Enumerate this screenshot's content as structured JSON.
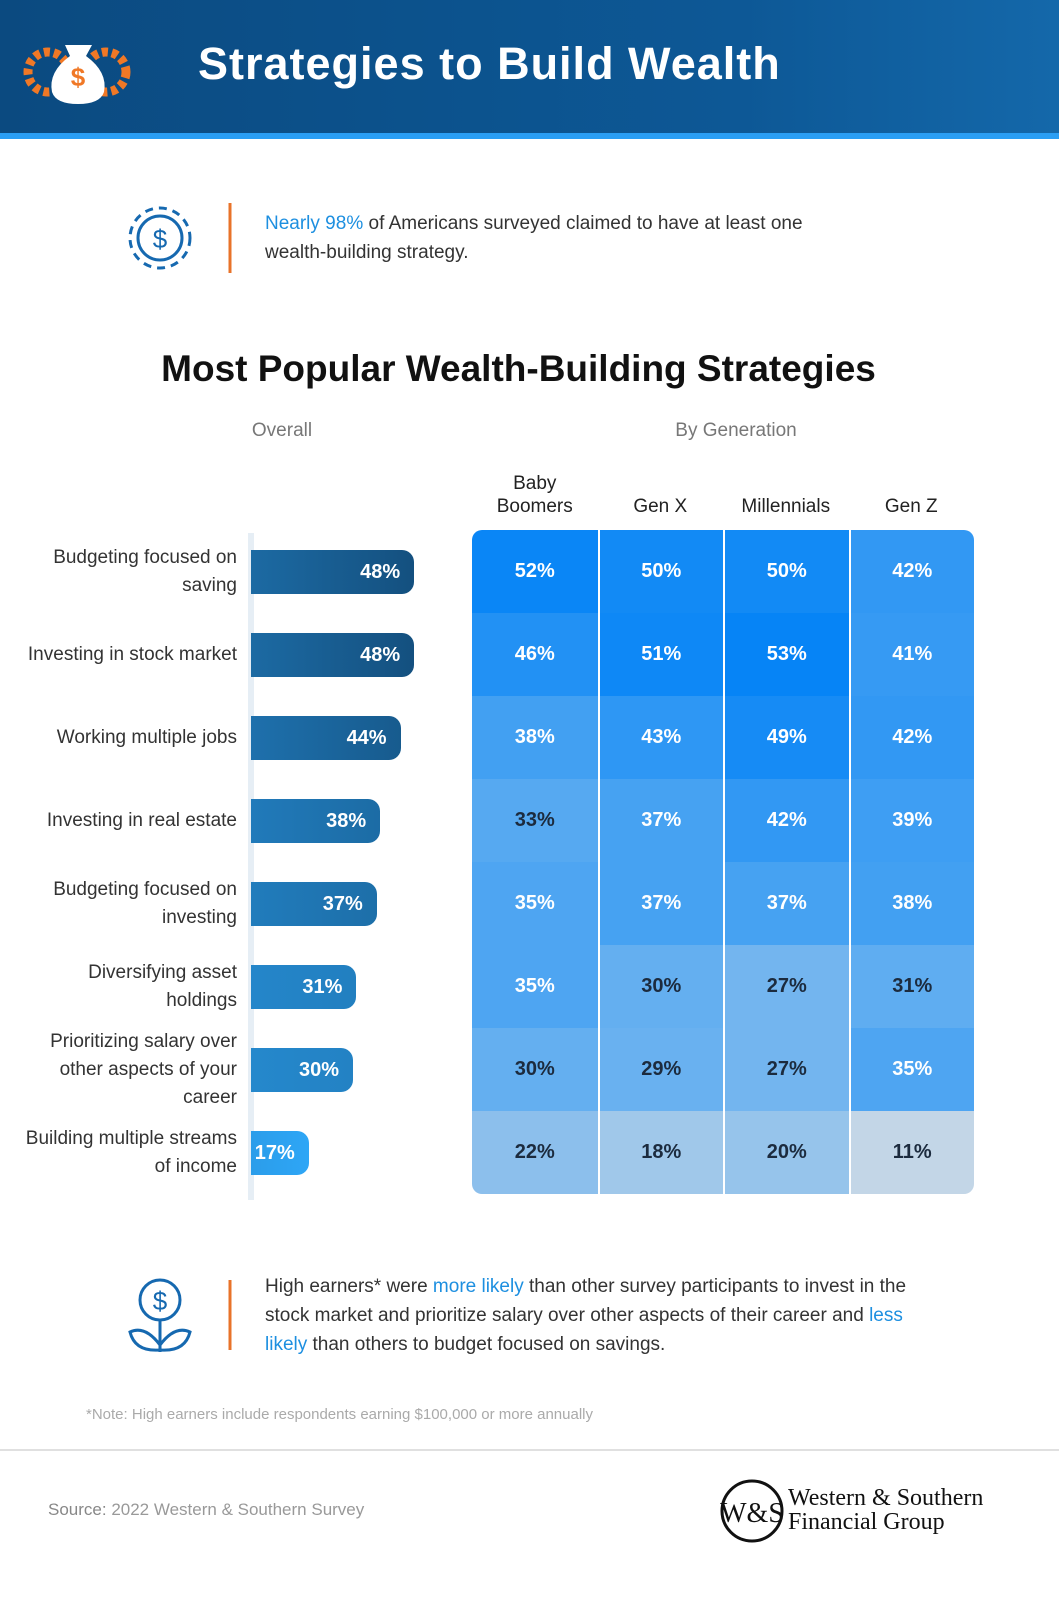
{
  "header": {
    "title": "Strategies to Build Wealth"
  },
  "callout_top": [
    {
      "text": "Nearly 98%",
      "highlight": true
    },
    {
      "text": " of Americans surveyed claimed to have at least one wealth-building strategy.",
      "highlight": false
    }
  ],
  "chart_data": [
    {
      "type": "bar",
      "orientation": "horizontal",
      "title": "Most Popular Wealth-Building Strategies",
      "subtitle": "Overall",
      "categories": [
        "Budgeting focused on saving",
        "Investing in stock market",
        "Working multiple jobs",
        "Investing in real estate",
        "Budgeting focused on investing",
        "Diversifying asset holdings",
        "Prioritizing salary over other aspects of your career",
        "Building multiple streams of income"
      ],
      "values": [
        48,
        48,
        44,
        38,
        37,
        31,
        30,
        17
      ],
      "value_labels": [
        "48%",
        "48%",
        "44%",
        "38%",
        "37%",
        "31%",
        "30%",
        "17%"
      ],
      "colors": [
        "#2ea6f6",
        "#14507f"
      ]
    },
    {
      "type": "heatmap",
      "subtitle": "By Generation",
      "columns": [
        "Baby Boomers",
        "Gen X",
        "Millennials",
        "Gen Z"
      ],
      "values": [
        [
          52,
          50,
          50,
          42
        ],
        [
          46,
          51,
          53,
          41
        ],
        [
          38,
          43,
          49,
          42
        ],
        [
          33,
          37,
          42,
          39
        ],
        [
          35,
          37,
          37,
          38
        ],
        [
          35,
          30,
          27,
          31
        ],
        [
          30,
          29,
          27,
          35
        ],
        [
          22,
          18,
          20,
          11
        ]
      ],
      "value_labels": [
        [
          "52%",
          "50%",
          "50%",
          "42%"
        ],
        [
          "46%",
          "51%",
          "53%",
          "41%"
        ],
        [
          "38%",
          "43%",
          "49%",
          "42%"
        ],
        [
          "33%",
          "37%",
          "42%",
          "39%"
        ],
        [
          "35%",
          "37%",
          "37%",
          "38%"
        ],
        [
          "35%",
          "30%",
          "27%",
          "31%"
        ],
        [
          "30%",
          "29%",
          "27%",
          "35%"
        ],
        [
          "22%",
          "18%",
          "20%",
          "11%"
        ]
      ],
      "colors": [
        "#c3d6e7",
        "#5aabf1",
        "#0684f6"
      ]
    }
  ],
  "callout_bottom": [
    {
      "text": "High earners* were ",
      "highlight": false
    },
    {
      "text": "more likely",
      "highlight": true
    },
    {
      "text": " than other survey participants to invest in the stock market and prioritize salary over other aspects of their career and ",
      "highlight": false
    },
    {
      "text": "less likely",
      "highlight": true
    },
    {
      "text": " than others to budget focused on savings.",
      "highlight": false
    }
  ],
  "note": "*Note: High earners include respondents earning $100,000 or more annually",
  "source": {
    "label": "Source:",
    "text": " 2022 Western & Southern Survey"
  },
  "logo": {
    "mark": "W&S",
    "line1": "Western & Southern",
    "line2": "Financial Group"
  }
}
